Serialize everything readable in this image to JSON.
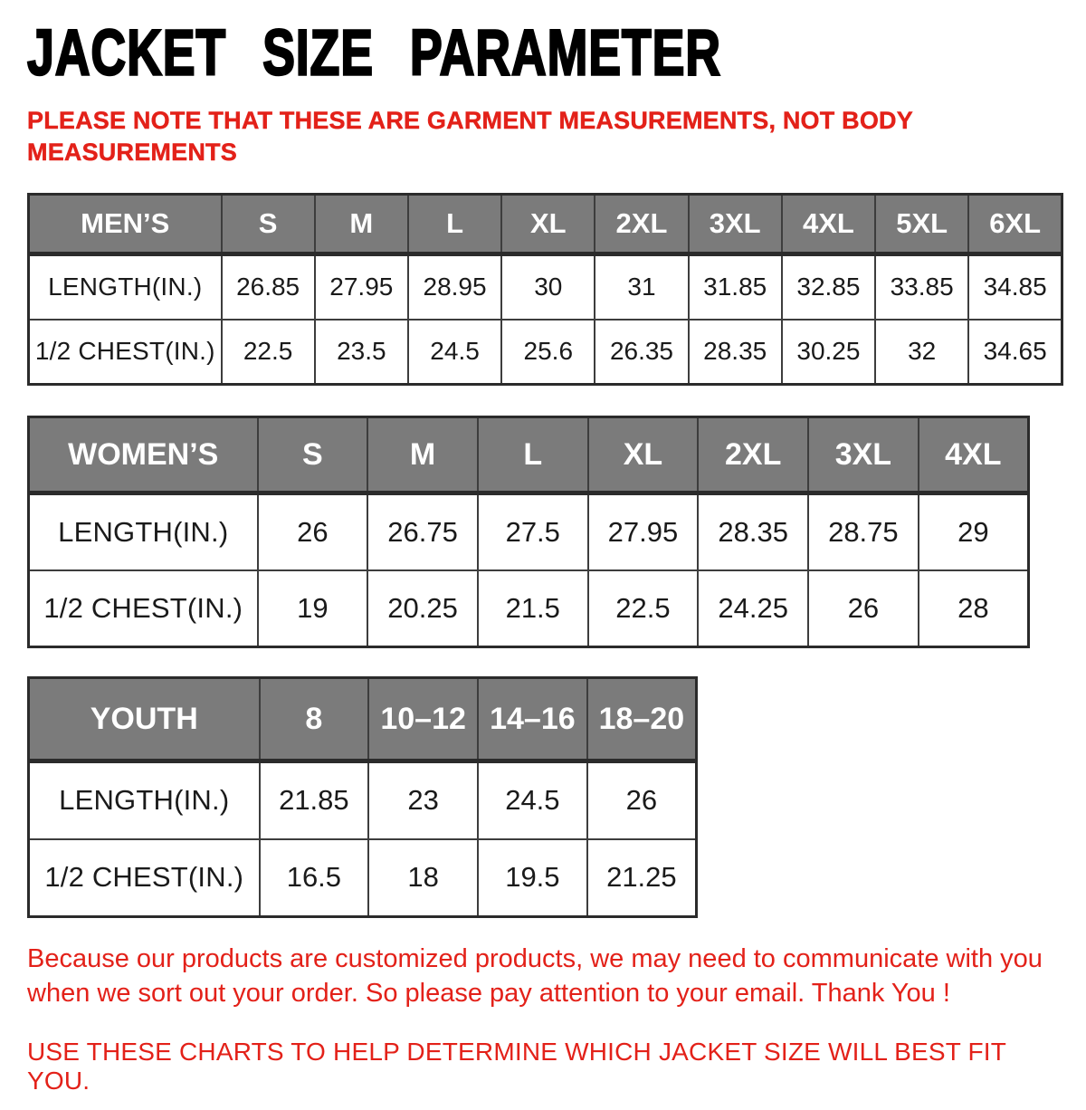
{
  "header": {
    "title": "JACKET SIZE PARAMETER",
    "note": {
      "line1": "PLEASE NOTE THAT THESE ARE GARMENT MEASUREMENTS, NOT BODY",
      "line2": "MEASUREMENTS"
    }
  },
  "tables": {
    "mens": {
      "name": "MEN’S",
      "sizes": [
        "S",
        "M",
        "L",
        "XL",
        "2XL",
        "3XL",
        "4XL",
        "5XL",
        "6XL"
      ],
      "rows": [
        {
          "label": "LENGTH(IN.)",
          "values": [
            "26.85",
            "27.95",
            "28.95",
            "30",
            "31",
            "31.85",
            "32.85",
            "33.85",
            "34.85"
          ]
        },
        {
          "label": "1/2 CHEST(IN.)",
          "values": [
            "22.5",
            "23.5",
            "24.5",
            "25.6",
            "26.35",
            "28.35",
            "30.25",
            "32",
            "34.65"
          ]
        }
      ]
    },
    "womens": {
      "name": "WOMEN’S",
      "sizes": [
        "S",
        "M",
        "L",
        "XL",
        "2XL",
        "3XL",
        "4XL"
      ],
      "rows": [
        {
          "label": "LENGTH(IN.)",
          "values": [
            "26",
            "26.75",
            "27.5",
            "27.95",
            "28.35",
            "28.75",
            "29"
          ]
        },
        {
          "label": "1/2 CHEST(IN.)",
          "values": [
            "19",
            "20.25",
            "21.5",
            "22.5",
            "24.25",
            "26",
            "28"
          ]
        }
      ]
    },
    "youth": {
      "name": "YOUTH",
      "sizes": [
        "8",
        "10–12",
        "14–16",
        "18–20"
      ],
      "rows": [
        {
          "label": "LENGTH(IN.)",
          "values": [
            "21.85",
            "23",
            "24.5",
            "26"
          ]
        },
        {
          "label": "1/2 CHEST(IN.)",
          "values": [
            "16.5",
            "18",
            "19.5",
            "21.25"
          ]
        }
      ]
    }
  },
  "footer": {
    "para_line1": "Because our products are customized products, we may need to communicate with you",
    "para_line2": "when we sort out your order. So please pay attention to your email. Thank You !",
    "tagline": "USE THESE CHARTS TO HELP DETERMINE WHICH JACKET SIZE WILL BEST FIT YOU."
  },
  "colors": {
    "accent_red": "#e32119",
    "header_gray": "#7b7b7b",
    "border_dark": "#2b2b2b"
  }
}
